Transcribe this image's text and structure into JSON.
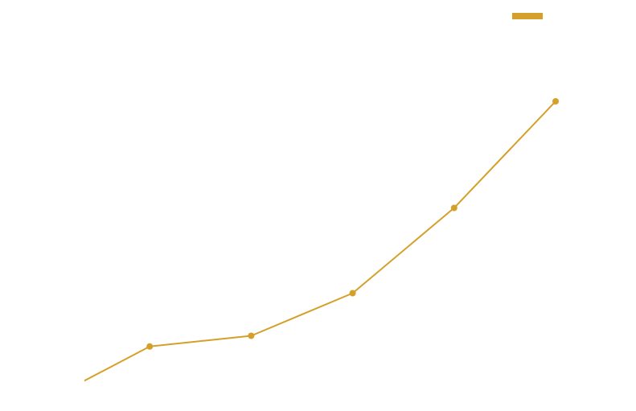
{
  "chart_data": {
    "type": "line",
    "x": [
      1,
      2,
      3,
      4,
      5,
      6
    ],
    "series": [
      {
        "color": "#D4A02A",
        "values": [
          0.5,
          1.0,
          1.1,
          1.5,
          2.3,
          3.3
        ]
      }
    ],
    "xlim": [
      1,
      6
    ],
    "ylim": [
      0.5,
      3.3
    ],
    "grid": false,
    "legend": "top-right",
    "title": "",
    "xlabel": "",
    "ylabel": ""
  }
}
